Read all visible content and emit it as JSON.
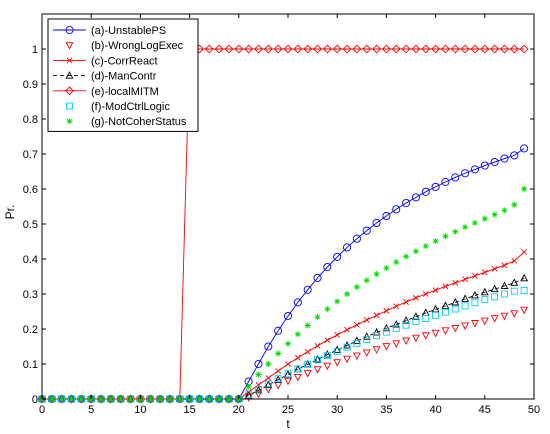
{
  "chart_data": {
    "type": "line",
    "title": "",
    "xlabel": "t",
    "ylabel": "Pr.",
    "xlim": [
      0,
      50
    ],
    "ylim": [
      0,
      1.1
    ],
    "x_ticks": [
      "0",
      "5",
      "10",
      "15",
      "20",
      "25",
      "30",
      "35",
      "40",
      "45",
      "50"
    ],
    "y_ticks": [
      "0",
      "0.1",
      "0.2",
      "0.3",
      "0.4",
      "0.5",
      "0.6",
      "0.7",
      "0.8",
      "0.9",
      "1"
    ],
    "grid": false,
    "legend_position": "top-left",
    "series": [
      {
        "name": "(a)-UnstablePS",
        "color": "#0000ff",
        "marker": "circle",
        "line": "solid",
        "x": [
          0,
          1,
          2,
          3,
          4,
          5,
          6,
          7,
          8,
          9,
          10,
          11,
          12,
          13,
          14,
          15,
          16,
          17,
          18,
          19,
          20,
          21,
          22,
          23,
          24,
          25,
          26,
          27,
          28,
          29,
          30,
          31,
          32,
          33,
          34,
          35,
          36,
          37,
          38,
          39,
          40,
          41,
          42,
          43,
          44,
          45,
          46,
          47,
          48,
          49
        ],
        "values": [
          0,
          0,
          0,
          0,
          0,
          0,
          0,
          0,
          0,
          0,
          0,
          0,
          0,
          0,
          0,
          0,
          0,
          0,
          0,
          0,
          0,
          0.05,
          0.1,
          0.15,
          0.195,
          0.237,
          0.276,
          0.312,
          0.346,
          0.377,
          0.406,
          0.433,
          0.458,
          0.481,
          0.503,
          0.523,
          0.542,
          0.56,
          0.576,
          0.592,
          0.606,
          0.62,
          0.633,
          0.645,
          0.656,
          0.667,
          0.677,
          0.687,
          0.696,
          0.716
        ]
      },
      {
        "name": "(b)-WrongLogExec",
        "color": "#ff0000",
        "marker": "triangle-down",
        "line": "none",
        "x": [
          0,
          1,
          2,
          3,
          4,
          5,
          6,
          7,
          8,
          9,
          10,
          11,
          12,
          13,
          14,
          15,
          16,
          17,
          18,
          19,
          20,
          21,
          22,
          23,
          24,
          25,
          26,
          27,
          28,
          29,
          30,
          31,
          32,
          33,
          34,
          35,
          36,
          37,
          38,
          39,
          40,
          41,
          42,
          43,
          44,
          45,
          46,
          47,
          48,
          49
        ],
        "values": [
          0,
          0,
          0,
          0,
          0,
          0,
          0,
          0,
          0,
          0,
          0,
          0,
          0,
          0,
          0,
          0,
          0,
          0,
          0,
          0,
          0,
          0.005,
          0.015,
          0.028,
          0.04,
          0.052,
          0.063,
          0.074,
          0.085,
          0.095,
          0.105,
          0.115,
          0.124,
          0.133,
          0.142,
          0.151,
          0.159,
          0.167,
          0.175,
          0.182,
          0.189,
          0.196,
          0.203,
          0.21,
          0.217,
          0.224,
          0.231,
          0.238,
          0.245,
          0.255
        ]
      },
      {
        "name": "(c)-CorrReact",
        "color": "#ff0000",
        "marker": "x",
        "line": "solid",
        "x": [
          0,
          1,
          2,
          3,
          4,
          5,
          6,
          7,
          8,
          9,
          10,
          11,
          12,
          13,
          14,
          15,
          16,
          17,
          18,
          19,
          20,
          21,
          22,
          23,
          24,
          25,
          26,
          27,
          28,
          29,
          30,
          31,
          32,
          33,
          34,
          35,
          36,
          37,
          38,
          39,
          40,
          41,
          42,
          43,
          44,
          45,
          46,
          47,
          48,
          49
        ],
        "values": [
          0,
          0,
          0,
          0,
          0,
          0,
          0,
          0,
          0,
          0,
          0,
          0,
          0,
          0,
          0,
          0,
          0,
          0,
          0,
          0,
          0,
          0.02,
          0.04,
          0.06,
          0.08,
          0.1,
          0.118,
          0.135,
          0.152,
          0.168,
          0.183,
          0.198,
          0.212,
          0.226,
          0.239,
          0.252,
          0.265,
          0.277,
          0.289,
          0.3,
          0.311,
          0.322,
          0.332,
          0.342,
          0.352,
          0.362,
          0.372,
          0.382,
          0.395,
          0.42
        ]
      },
      {
        "name": "(d)-ManContr",
        "color": "#000000",
        "marker": "triangle-up",
        "line": "dashed",
        "x": [
          0,
          1,
          2,
          3,
          4,
          5,
          6,
          7,
          8,
          9,
          10,
          11,
          12,
          13,
          14,
          15,
          16,
          17,
          18,
          19,
          20,
          21,
          22,
          23,
          24,
          25,
          26,
          27,
          28,
          29,
          30,
          31,
          32,
          33,
          34,
          35,
          36,
          37,
          38,
          39,
          40,
          41,
          42,
          43,
          44,
          45,
          46,
          47,
          48,
          49
        ],
        "values": [
          0,
          0,
          0,
          0,
          0,
          0,
          0,
          0,
          0,
          0,
          0,
          0,
          0,
          0,
          0,
          0,
          0,
          0,
          0,
          0,
          0,
          0.01,
          0.025,
          0.04,
          0.055,
          0.07,
          0.085,
          0.099,
          0.113,
          0.127,
          0.14,
          0.153,
          0.166,
          0.178,
          0.19,
          0.202,
          0.213,
          0.224,
          0.235,
          0.246,
          0.256,
          0.266,
          0.276,
          0.286,
          0.296,
          0.305,
          0.314,
          0.323,
          0.332,
          0.345
        ]
      },
      {
        "name": "(e)-localMITM",
        "color": "#ff0000",
        "marker": "diamond",
        "line": "solid",
        "x": [
          0,
          1,
          2,
          3,
          4,
          5,
          6,
          7,
          8,
          9,
          10,
          11,
          12,
          13,
          14,
          15,
          16,
          17,
          18,
          19,
          20,
          21,
          22,
          23,
          24,
          25,
          26,
          27,
          28,
          29,
          30,
          31,
          32,
          33,
          34,
          35,
          36,
          37,
          38,
          39,
          40,
          41,
          42,
          43,
          44,
          45,
          46,
          47,
          48,
          49
        ],
        "values": [
          0,
          0,
          0,
          0,
          0,
          0,
          0,
          0,
          0,
          0,
          0,
          0,
          0,
          0,
          0,
          1,
          1,
          1,
          1,
          1,
          1,
          1,
          1,
          1,
          1,
          1,
          1,
          1,
          1,
          1,
          1,
          1,
          1,
          1,
          1,
          1,
          1,
          1,
          1,
          1,
          1,
          1,
          1,
          1,
          1,
          1,
          1,
          1,
          1,
          1
        ]
      },
      {
        "name": "(f)-ModCtrlLogic",
        "color": "#00ccff",
        "marker": "square",
        "line": "none",
        "x": [
          0,
          1,
          2,
          3,
          4,
          5,
          6,
          7,
          8,
          9,
          10,
          11,
          12,
          13,
          14,
          15,
          16,
          17,
          18,
          19,
          20,
          21,
          22,
          23,
          24,
          25,
          26,
          27,
          28,
          29,
          30,
          31,
          32,
          33,
          34,
          35,
          36,
          37,
          38,
          39,
          40,
          41,
          42,
          43,
          44,
          45,
          46,
          47,
          48,
          49
        ],
        "values": [
          0,
          0,
          0,
          0,
          0,
          0,
          0,
          0,
          0,
          0,
          0,
          0,
          0,
          0,
          0,
          0,
          0,
          0,
          0,
          0,
          0,
          0.012,
          0.028,
          0.043,
          0.058,
          0.072,
          0.086,
          0.099,
          0.112,
          0.124,
          0.136,
          0.148,
          0.159,
          0.17,
          0.181,
          0.191,
          0.201,
          0.211,
          0.221,
          0.23,
          0.239,
          0.248,
          0.257,
          0.266,
          0.275,
          0.284,
          0.292,
          0.3,
          0.308,
          0.31
        ]
      },
      {
        "name": "(g)-NotCoherStatus",
        "color": "#00dd00",
        "marker": "asterisk",
        "line": "none",
        "x": [
          0,
          1,
          2,
          3,
          4,
          5,
          6,
          7,
          8,
          9,
          10,
          11,
          12,
          13,
          14,
          15,
          16,
          17,
          18,
          19,
          20,
          21,
          22,
          23,
          24,
          25,
          26,
          27,
          28,
          29,
          30,
          31,
          32,
          33,
          34,
          35,
          36,
          37,
          38,
          39,
          40,
          41,
          42,
          43,
          44,
          45,
          46,
          47,
          48,
          49
        ],
        "values": [
          0,
          0,
          0,
          0,
          0,
          0,
          0,
          0,
          0,
          0,
          0,
          0,
          0,
          0,
          0,
          0,
          0,
          0,
          0,
          0,
          0,
          0.035,
          0.07,
          0.1,
          0.13,
          0.158,
          0.185,
          0.21,
          0.234,
          0.257,
          0.279,
          0.3,
          0.32,
          0.339,
          0.357,
          0.374,
          0.391,
          0.407,
          0.422,
          0.437,
          0.451,
          0.465,
          0.478,
          0.491,
          0.503,
          0.515,
          0.527,
          0.539,
          0.555,
          0.6
        ]
      }
    ]
  }
}
